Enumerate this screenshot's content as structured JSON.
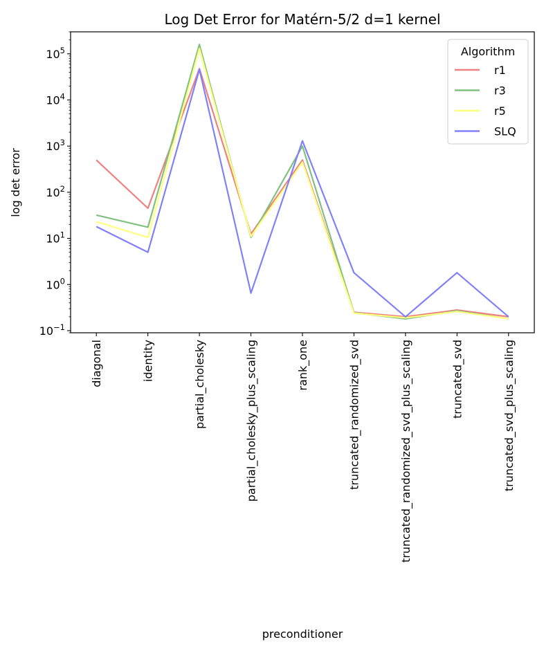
{
  "chart_data": {
    "type": "line",
    "title": "Log Det Error for Matérn-5/2 d=1 kernel",
    "xlabel": "preconditioner",
    "ylabel": "log det error",
    "yscale": "log",
    "ylim": [
      0.09,
      300000
    ],
    "y_ticks": [
      0.1,
      1,
      10,
      100,
      1000,
      10000,
      100000
    ],
    "y_tick_labels": [
      {
        "base": "10",
        "exp": "−1"
      },
      {
        "base": "10",
        "exp": "0"
      },
      {
        "base": "10",
        "exp": "1"
      },
      {
        "base": "10",
        "exp": "2"
      },
      {
        "base": "10",
        "exp": "3"
      },
      {
        "base": "10",
        "exp": "4"
      },
      {
        "base": "10",
        "exp": "5"
      }
    ],
    "categories": [
      "diagonal",
      "identity",
      "partial_cholesky",
      "partial_cholesky_plus_scaling",
      "rank_one",
      "truncated_randomized_svd",
      "truncated_randomized_svd_plus_scaling",
      "truncated_svd",
      "truncated_svd_plus_scaling"
    ],
    "legend": {
      "title": "Algorithm",
      "position": "top-right"
    },
    "series": [
      {
        "name": "r1",
        "color": "#f08080",
        "values": [
          500,
          45,
          48000,
          12.5,
          500,
          0.25,
          0.2,
          0.28,
          0.2
        ]
      },
      {
        "name": "r3",
        "color": "#80c080",
        "values": [
          32,
          17.5,
          160000,
          10.5,
          1000,
          0.245,
          0.18,
          0.27,
          0.18
        ]
      },
      {
        "name": "r5",
        "color": "#ffff80",
        "values": [
          23,
          10.5,
          130000,
          11,
          450,
          0.24,
          0.19,
          0.26,
          0.18
        ]
      },
      {
        "name": "SLQ",
        "color": "#8080f8",
        "values": [
          18,
          5,
          46000,
          0.65,
          1300,
          1.8,
          0.2,
          1.8,
          0.2
        ]
      }
    ]
  }
}
